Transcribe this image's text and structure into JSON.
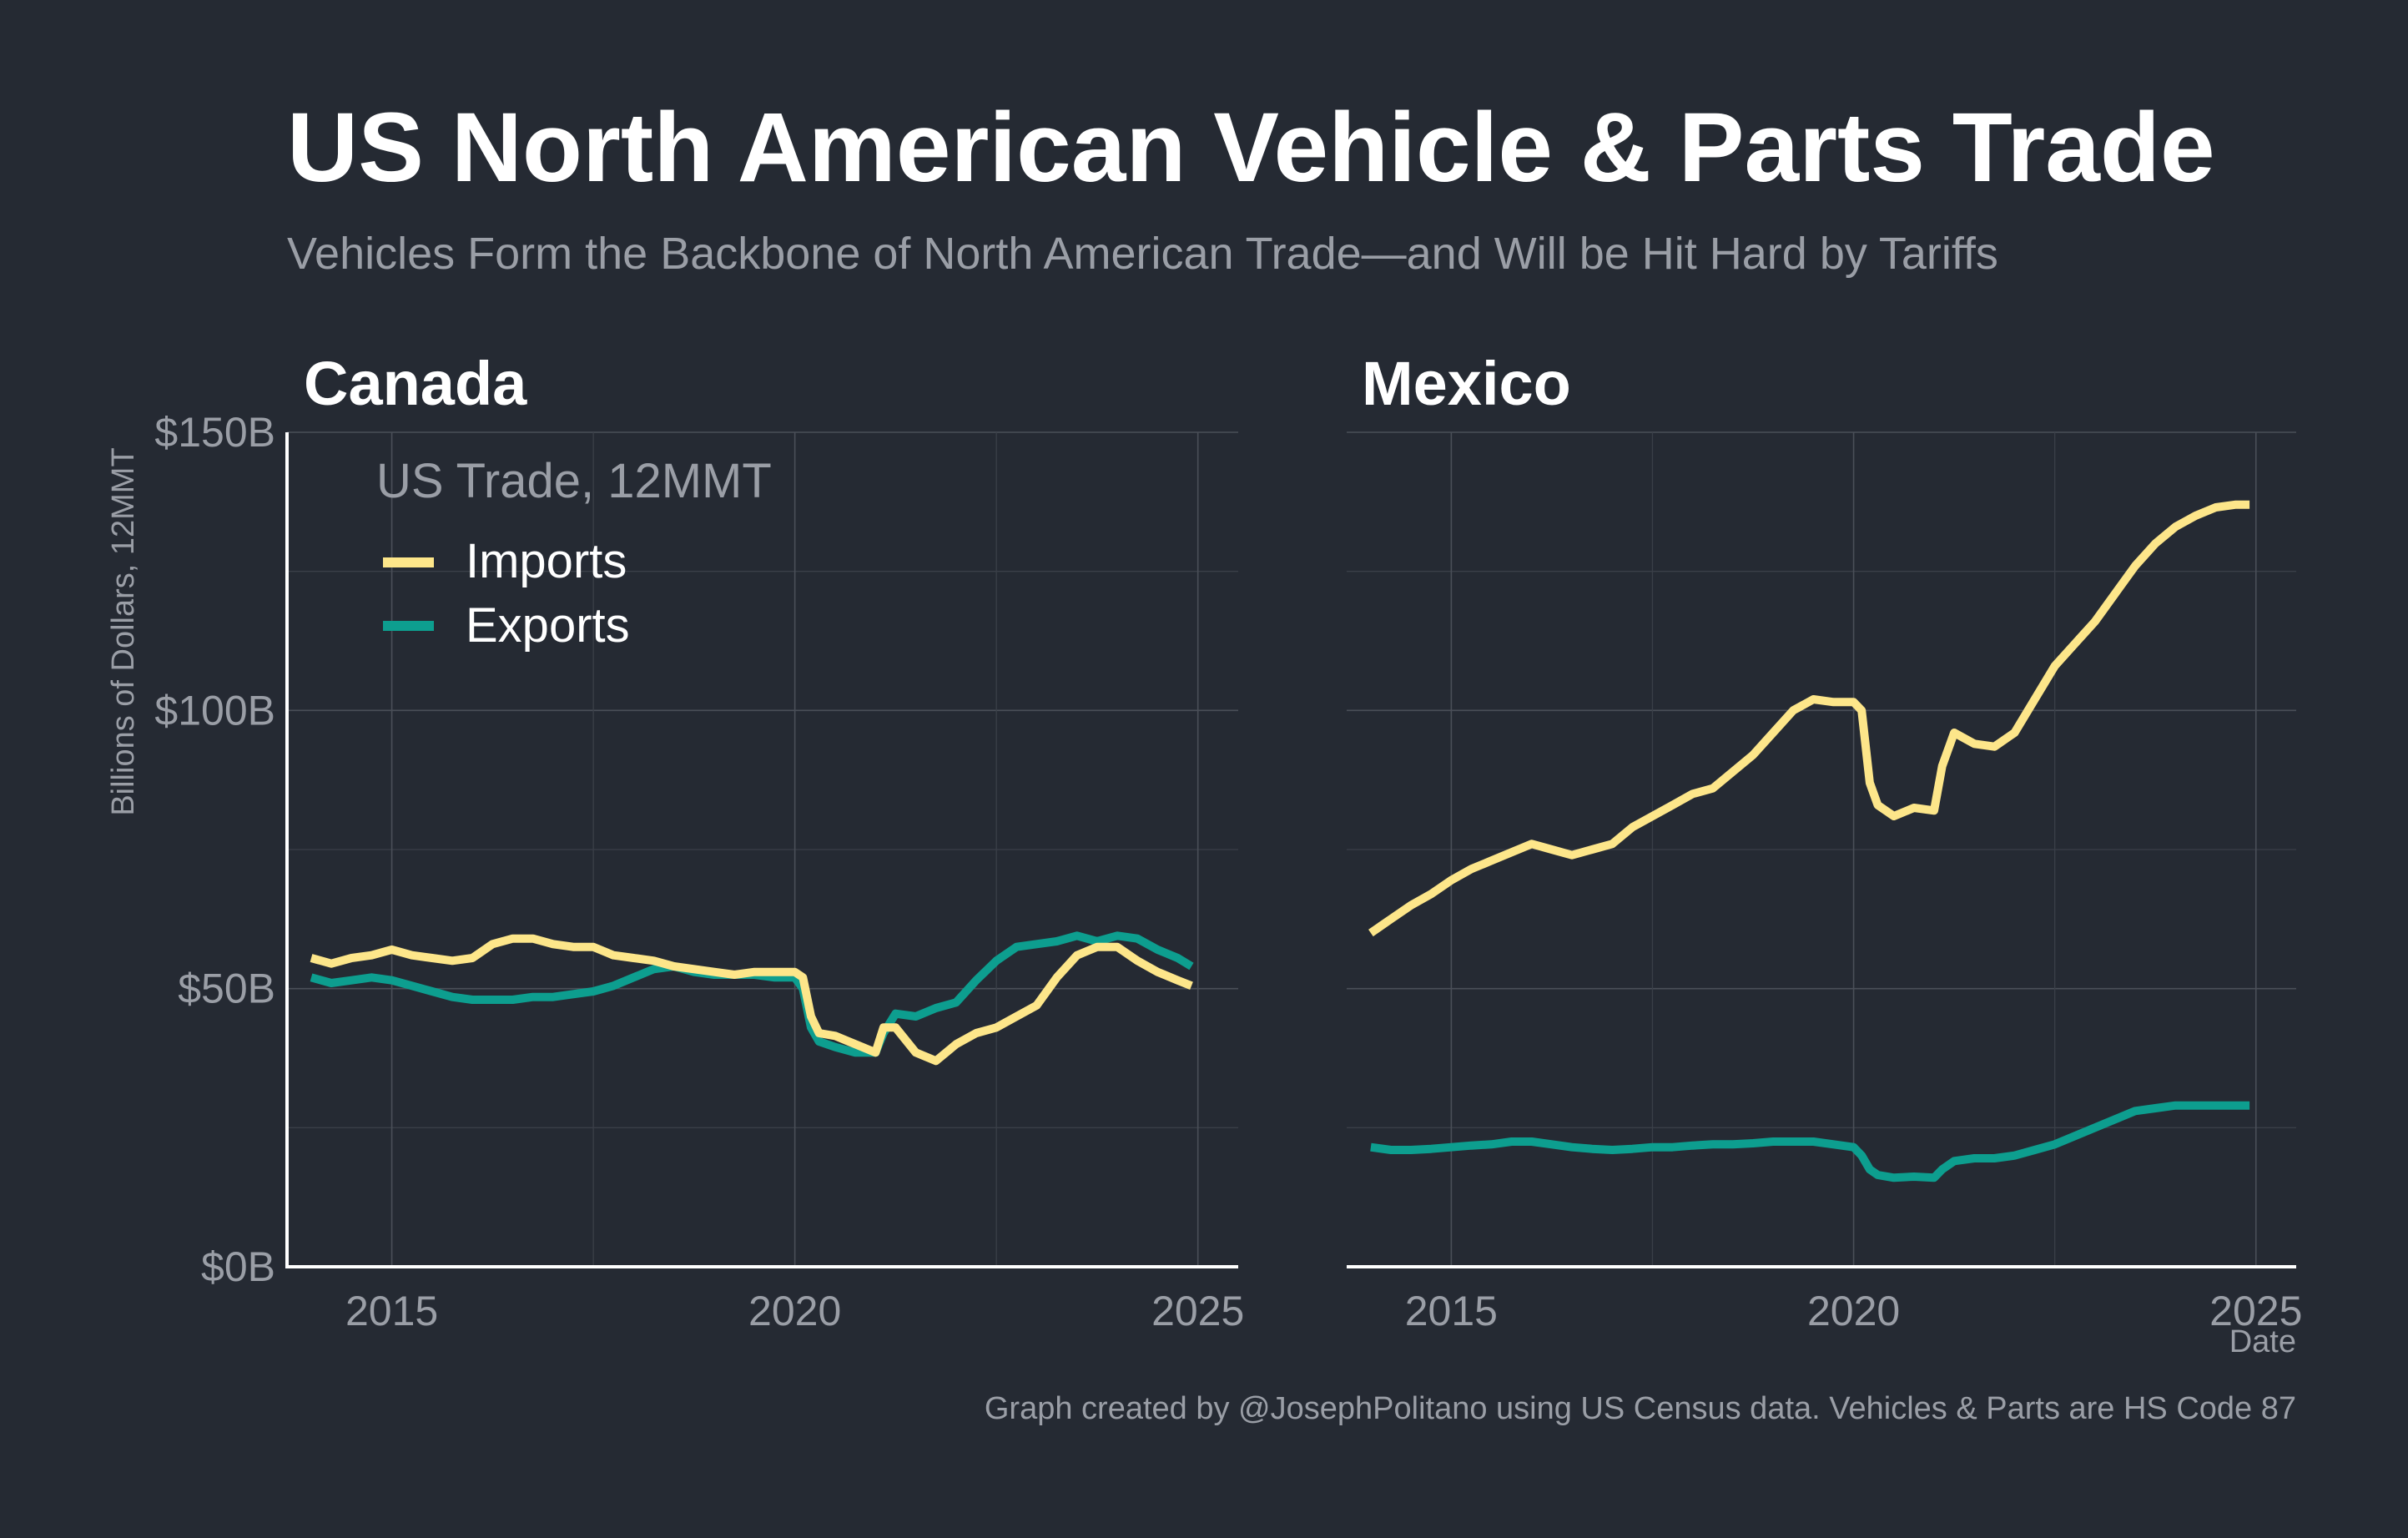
{
  "title": "US North American Vehicle & Parts Trade",
  "subtitle": "Vehicles Form the Backbone of North American Trade—and Will be Hit Hard by Tariffs",
  "caption": "Graph created by @JosephPolitano using US Census data. Vehicles & Parts are HS Code 87",
  "colors": {
    "background": "#252a33",
    "imports": "#fde68a",
    "exports": "#0d9e8f"
  },
  "chart_data": [
    {
      "type": "line",
      "panel": "Canada",
      "xlabel": "",
      "ylabel": "Billions of Dollars, 12MMT",
      "xlim": [
        2013.7,
        2025.5
      ],
      "ylim": [
        0,
        150
      ],
      "x_ticks": [
        2015,
        2020,
        2025
      ],
      "x_tick_labels": [
        "2015",
        "2020",
        "2025"
      ],
      "y_ticks": [
        0,
        50,
        100,
        150
      ],
      "y_tick_labels": [
        "$0B",
        "$50B",
        "$100B",
        "$150B"
      ],
      "grid": true,
      "legend": {
        "title": "US Trade, 12MMT",
        "position": "top-left",
        "entries": [
          "Imports",
          "Exports"
        ]
      },
      "x": [
        2014.0,
        2014.25,
        2014.5,
        2014.75,
        2015.0,
        2015.25,
        2015.5,
        2015.75,
        2016.0,
        2016.25,
        2016.5,
        2016.75,
        2017.0,
        2017.25,
        2017.5,
        2017.75,
        2018.0,
        2018.25,
        2018.5,
        2018.75,
        2019.0,
        2019.25,
        2019.5,
        2019.75,
        2020.0,
        2020.1,
        2020.2,
        2020.3,
        2020.5,
        2020.75,
        2021.0,
        2021.1,
        2021.25,
        2021.5,
        2021.75,
        2022.0,
        2022.25,
        2022.5,
        2022.75,
        2023.0,
        2023.25,
        2023.5,
        2023.75,
        2024.0,
        2024.25,
        2024.5,
        2024.75,
        2024.92
      ],
      "series": [
        {
          "name": "Imports",
          "values": [
            55.5,
            54.5,
            55.5,
            56,
            57,
            56,
            55.5,
            55,
            55.5,
            58,
            59,
            59,
            58,
            57.5,
            57.5,
            56,
            55.5,
            55,
            54,
            53.5,
            53,
            52.5,
            53,
            53,
            53,
            52,
            45,
            42,
            41.5,
            40,
            38.5,
            43,
            43,
            38.5,
            37,
            40,
            42,
            43,
            45,
            47,
            52,
            56,
            57.5,
            57.5,
            55,
            53,
            51.5,
            50.5
          ]
        },
        {
          "name": "Exports",
          "values": [
            52,
            51,
            51.5,
            52,
            51.5,
            50.5,
            49.5,
            48.5,
            48,
            48,
            48,
            48.5,
            48.5,
            49,
            49.5,
            50.5,
            52,
            53.5,
            54,
            53,
            52.5,
            52.5,
            52.5,
            52,
            52,
            50,
            43,
            40.5,
            39.5,
            38.5,
            38.5,
            42,
            45.5,
            45,
            46.5,
            47.5,
            51.5,
            55,
            57.5,
            58,
            58.5,
            59.5,
            58.5,
            59.5,
            59,
            57,
            55.5,
            54
          ]
        }
      ]
    },
    {
      "type": "line",
      "panel": "Mexico",
      "xlabel": "Date",
      "ylabel": "",
      "xlim": [
        2013.7,
        2025.5
      ],
      "ylim": [
        0,
        150
      ],
      "x_ticks": [
        2015,
        2020,
        2025
      ],
      "x_tick_labels": [
        "2015",
        "2020",
        "2025"
      ],
      "grid": true,
      "x": [
        2014.0,
        2014.25,
        2014.5,
        2014.75,
        2015.0,
        2015.25,
        2015.5,
        2015.75,
        2016.0,
        2016.25,
        2016.5,
        2016.75,
        2017.0,
        2017.25,
        2017.5,
        2017.75,
        2018.0,
        2018.25,
        2018.5,
        2018.75,
        2019.0,
        2019.25,
        2019.5,
        2019.75,
        2020.0,
        2020.1,
        2020.2,
        2020.3,
        2020.5,
        2020.75,
        2021.0,
        2021.1,
        2021.25,
        2021.5,
        2021.75,
        2022.0,
        2022.25,
        2022.5,
        2022.75,
        2023.0,
        2023.25,
        2023.5,
        2023.75,
        2024.0,
        2024.25,
        2024.5,
        2024.75,
        2024.92
      ],
      "series": [
        {
          "name": "Imports",
          "values": [
            60,
            62.5,
            65,
            67,
            69.5,
            71.5,
            73,
            74.5,
            76,
            75,
            74,
            75,
            76,
            79,
            81,
            83,
            85,
            86,
            89,
            92,
            96,
            100,
            102,
            101.5,
            101.5,
            100,
            87,
            83,
            81,
            82.5,
            82,
            90,
            96,
            94,
            93.5,
            96,
            102,
            108,
            112,
            116,
            121,
            126,
            130,
            133,
            135,
            136.5,
            137,
            137
          ]
        },
        {
          "name": "Exports",
          "values": [
            21.5,
            21,
            21,
            21.2,
            21.5,
            21.8,
            22,
            22.5,
            22.5,
            22,
            21.5,
            21.2,
            21,
            21.2,
            21.5,
            21.5,
            21.8,
            22,
            22,
            22.2,
            22.5,
            22.5,
            22.5,
            22,
            21.5,
            20,
            17.5,
            16.5,
            16,
            16.2,
            16,
            17.5,
            19,
            19.5,
            19.5,
            20,
            21,
            22,
            23.5,
            25,
            26.5,
            28,
            28.5,
            29,
            29,
            29,
            29,
            29
          ]
        }
      ]
    }
  ]
}
